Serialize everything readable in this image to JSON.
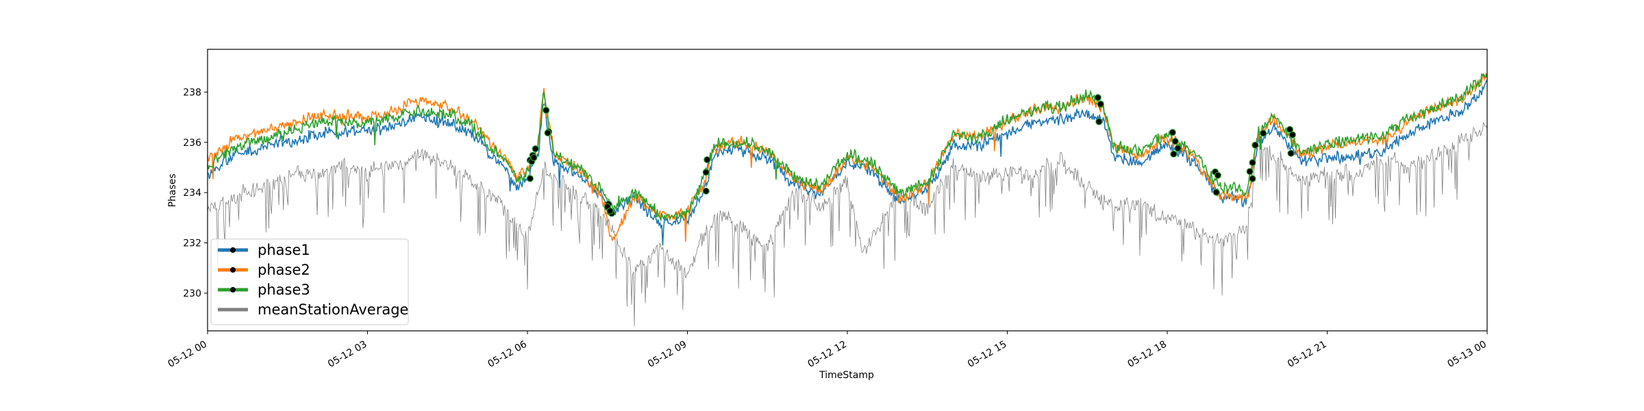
{
  "chart_data": {
    "type": "line",
    "title": "",
    "xlabel": "TimeStamp",
    "ylabel": "Phases",
    "x_range": [
      "05-12 00",
      "05-13 00"
    ],
    "ylim": [
      228.5,
      239.7
    ],
    "x_ticks": [
      {
        "hour": 0,
        "label": "05-12 00"
      },
      {
        "hour": 3,
        "label": "05-12 03"
      },
      {
        "hour": 6,
        "label": "05-12 06"
      },
      {
        "hour": 9,
        "label": "05-12 09"
      },
      {
        "hour": 12,
        "label": "05-12 12"
      },
      {
        "hour": 15,
        "label": "05-12 15"
      },
      {
        "hour": 18,
        "label": "05-12 18"
      },
      {
        "hour": 21,
        "label": "05-12 21"
      },
      {
        "hour": 24,
        "label": "05-13 00"
      }
    ],
    "y_ticks": [
      {
        "value": 230,
        "label": "230"
      },
      {
        "value": 232,
        "label": "232"
      },
      {
        "value": 234,
        "label": "234"
      },
      {
        "value": 236,
        "label": "236"
      },
      {
        "value": 238,
        "label": "238"
      }
    ],
    "grid": false,
    "legend_position": "lower-left",
    "series": [
      {
        "name": "phase1",
        "color": "#1f77b4",
        "offset_from_phase3": -0.35,
        "x": [
          0,
          0.5,
          1,
          1.5,
          2,
          2.5,
          3,
          3.5,
          4,
          4.5,
          5,
          5.3,
          5.6,
          5.8,
          6,
          6.2,
          6.3,
          6.5,
          7,
          7.4,
          7.6,
          8,
          8.5,
          9,
          9.3,
          9.5,
          10,
          10.5,
          11,
          11.5,
          12,
          12.5,
          13,
          13.5,
          14,
          14.5,
          15,
          15.5,
          16,
          16.5,
          16.8,
          17,
          17.5,
          18,
          18.5,
          19,
          19.5,
          19.7,
          20,
          20.5,
          21,
          21.5,
          22,
          22.5,
          23,
          23.5,
          24
        ],
        "y": [
          234.7,
          235.5,
          235.8,
          236.0,
          236.3,
          236.4,
          236.5,
          236.6,
          237.0,
          236.8,
          236.2,
          235.5,
          235.0,
          234.2,
          234.5,
          235.5,
          237.6,
          235.2,
          234.7,
          233.8,
          233.2,
          233.8,
          232.7,
          233.0,
          234.0,
          235.5,
          235.7,
          235.4,
          234.3,
          234.0,
          235.2,
          234.8,
          233.6,
          234.1,
          235.9,
          235.8,
          236.4,
          236.8,
          236.9,
          237.2,
          236.9,
          235.4,
          235.2,
          235.9,
          235.2,
          233.8,
          233.6,
          236.0,
          236.6,
          235.3,
          235.4,
          235.5,
          235.6,
          236.3,
          236.8,
          237.2,
          238.2
        ]
      },
      {
        "name": "phase2",
        "color": "#ff7f0e",
        "offset_from_phase3": 0.2,
        "x": [
          0,
          0.5,
          1,
          1.5,
          2,
          2.5,
          3,
          3.5,
          4,
          4.5,
          5,
          5.3,
          5.6,
          5.8,
          6,
          6.2,
          6.3,
          6.5,
          7,
          7.4,
          7.6,
          8,
          8.5,
          9,
          9.3,
          9.5,
          10,
          10.5,
          11,
          11.5,
          12,
          12.5,
          13,
          13.5,
          14,
          14.5,
          15,
          15.5,
          16,
          16.5,
          16.8,
          17,
          17.5,
          18,
          18.5,
          19,
          19.5,
          19.7,
          20,
          20.5,
          21,
          21.5,
          22,
          22.5,
          23,
          23.5,
          24
        ],
        "y": [
          235.3,
          236.1,
          236.4,
          236.7,
          237.1,
          237.0,
          237.0,
          237.2,
          237.7,
          237.4,
          236.8,
          235.9,
          235.4,
          234.6,
          234.9,
          235.8,
          238.0,
          235.6,
          234.9,
          233.7,
          232.0,
          233.9,
          233.0,
          233.2,
          234.3,
          235.8,
          236.0,
          235.7,
          234.5,
          234.1,
          235.3,
          235.0,
          233.7,
          234.3,
          236.3,
          236.2,
          236.8,
          237.3,
          237.4,
          237.8,
          237.3,
          235.8,
          235.5,
          236.2,
          235.4,
          233.9,
          233.7,
          236.3,
          237.0,
          235.5,
          235.9,
          236.0,
          236.0,
          236.8,
          237.3,
          237.7,
          238.6
        ]
      },
      {
        "name": "phase3",
        "color": "#2ca02c",
        "offset_from_phase3": 0,
        "x": [
          0,
          0.5,
          1,
          1.5,
          2,
          2.5,
          3,
          3.5,
          4,
          4.5,
          5,
          5.3,
          5.6,
          5.8,
          6,
          6.2,
          6.3,
          6.5,
          7,
          7.4,
          7.6,
          8,
          8.5,
          9,
          9.3,
          9.5,
          10,
          10.5,
          11,
          11.5,
          12,
          12.5,
          13,
          13.5,
          14,
          14.5,
          15,
          15.5,
          16,
          16.5,
          16.8,
          17,
          17.5,
          18,
          18.5,
          19,
          19.5,
          19.7,
          20,
          20.5,
          21,
          21.5,
          22,
          22.5,
          23,
          23.5,
          24
        ],
        "y": [
          235.0,
          235.8,
          236.1,
          236.4,
          236.8,
          236.8,
          236.8,
          236.9,
          237.3,
          237.1,
          236.6,
          235.8,
          235.3,
          234.5,
          234.8,
          235.9,
          238.0,
          235.5,
          234.9,
          234.0,
          233.4,
          234.0,
          233.0,
          233.2,
          234.5,
          235.9,
          236.0,
          235.7,
          234.6,
          234.3,
          235.5,
          235.1,
          233.9,
          234.4,
          236.3,
          236.2,
          236.9,
          237.3,
          237.4,
          237.9,
          237.4,
          235.8,
          235.6,
          236.3,
          235.6,
          234.2,
          234.1,
          236.4,
          237.1,
          235.6,
          235.9,
          236.1,
          236.2,
          236.9,
          237.4,
          237.8,
          238.7
        ]
      },
      {
        "name": "meanStationAverage",
        "color": "#808080",
        "x": [
          0,
          0.5,
          1,
          1.5,
          2,
          2.5,
          3,
          3.5,
          4,
          4.5,
          5,
          5.5,
          6,
          6.3,
          6.5,
          7,
          7.5,
          8,
          8.5,
          9,
          9.3,
          9.6,
          10,
          10.5,
          11,
          11.5,
          12,
          12.3,
          12.6,
          13,
          13.5,
          14,
          14.5,
          15,
          15.5,
          16,
          16.5,
          17,
          17.5,
          18,
          18.5,
          19,
          19.5,
          19.7,
          20,
          20.5,
          21,
          21.5,
          22,
          22.5,
          23,
          23.5,
          24
        ],
        "y": [
          233.2,
          233.8,
          234.2,
          234.5,
          234.8,
          235.0,
          234.8,
          235.1,
          235.5,
          235.2,
          234.3,
          233.6,
          232.2,
          234.8,
          234.6,
          233.9,
          232.8,
          230.9,
          231.8,
          230.7,
          232.3,
          233.1,
          232.6,
          231.8,
          234.0,
          233.5,
          234.4,
          231.5,
          232.7,
          234.0,
          233.3,
          235.2,
          234.5,
          234.8,
          234.7,
          235.3,
          234.2,
          233.4,
          233.6,
          233.0,
          232.5,
          232.0,
          232.6,
          235.9,
          235.6,
          234.4,
          234.8,
          234.7,
          235.3,
          235.1,
          235.4,
          236.0,
          236.6
        ]
      }
    ],
    "anomaly_markers": [
      {
        "series": "phase3",
        "color": "#000000",
        "x": [
          6.05,
          6.08,
          6.1,
          6.15,
          6.35,
          6.4,
          7.5,
          7.52,
          7.55,
          7.58,
          9.35,
          9.37,
          16.7,
          16.75,
          18.1,
          18.15,
          18.2,
          18.9,
          18.95,
          19.55,
          19.6,
          19.65,
          19.8,
          20.3,
          20.35
        ]
      },
      {
        "series": "phase1",
        "color": "#000000",
        "x": [
          6.05,
          6.12,
          6.38,
          7.5,
          7.55,
          9.35,
          16.72,
          18.12,
          18.92,
          19.6,
          20.32
        ]
      }
    ]
  }
}
